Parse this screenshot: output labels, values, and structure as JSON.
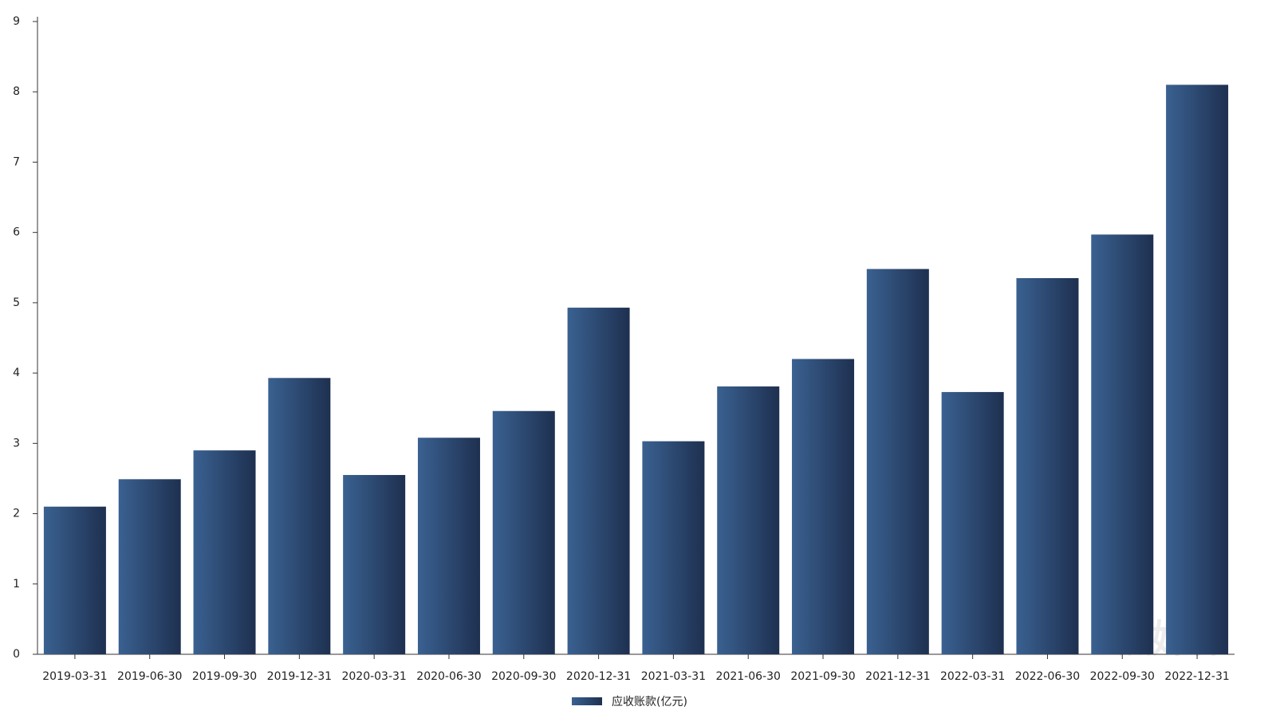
{
  "chart_data": {
    "type": "bar",
    "categories": [
      "2019-03-31",
      "2019-06-30",
      "2019-09-30",
      "2019-12-31",
      "2020-03-31",
      "2020-06-30",
      "2020-09-30",
      "2020-12-31",
      "2021-03-31",
      "2021-06-30",
      "2021-09-30",
      "2021-12-31",
      "2022-03-31",
      "2022-06-30",
      "2022-09-30",
      "2022-12-31"
    ],
    "series": [
      {
        "name": "应收账款(亿元)",
        "color": [
          "#3a6191",
          "#1e3050"
        ],
        "values": [
          2.1,
          2.49,
          2.9,
          3.93,
          2.55,
          3.08,
          3.46,
          4.93,
          3.03,
          3.81,
          4.2,
          5.48,
          3.73,
          5.35,
          5.97,
          8.1
        ]
      }
    ],
    "ylim": [
      0,
      9
    ],
    "yticks": [
      0,
      1,
      2,
      3,
      4,
      5,
      6,
      7,
      8,
      9
    ],
    "legend": "bottom",
    "watermark": "钛媒体"
  }
}
